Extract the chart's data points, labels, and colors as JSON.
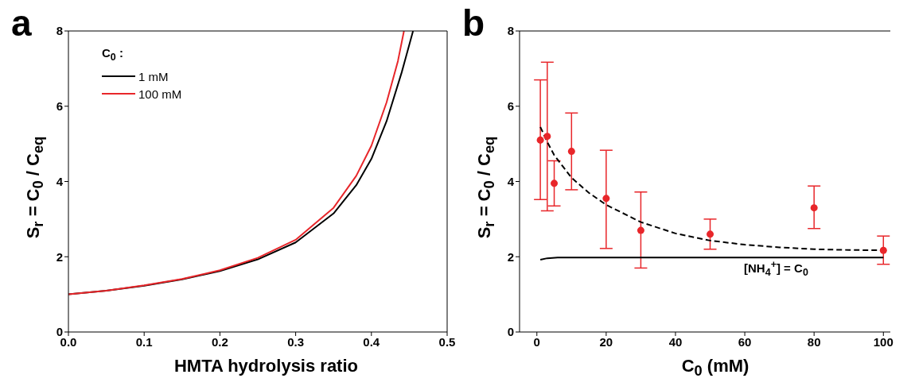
{
  "chart_data": [
    {
      "type": "line",
      "title": "a",
      "xlabel": "HMTA hydrolysis ratio",
      "ylabel": "S$_{r}$ = C$_{0}$ / C$_{eq}$",
      "legend_title": "C$_{0}$ :",
      "legend": "top left",
      "marker": "none",
      "line_style": "solid",
      "xlim": [
        0,
        0.5
      ],
      "xticks": [
        {
          "value": 0,
          "label": "0.0"
        },
        0.1,
        0.2,
        0.3,
        0.4,
        0.5
      ],
      "ylim": [
        0,
        8
      ],
      "yticks": [
        0,
        2,
        4,
        6,
        8
      ],
      "series": [
        {
          "name": "1 mM",
          "color": "#000000",
          "x": [
            0,
            0.05,
            0.1,
            0.15,
            0.2,
            0.25,
            0.3,
            0.35,
            0.38,
            0.4,
            0.42,
            0.44,
            0.455
          ],
          "values": [
            1.0,
            1.1,
            1.23,
            1.4,
            1.62,
            1.93,
            2.38,
            3.15,
            3.9,
            4.6,
            5.6,
            6.9,
            8.0
          ]
        },
        {
          "name": "100 mM",
          "color": "#e8262a",
          "x": [
            0,
            0.05,
            0.1,
            0.15,
            0.2,
            0.25,
            0.3,
            0.35,
            0.38,
            0.4,
            0.42,
            0.435,
            0.443
          ],
          "values": [
            1.0,
            1.1,
            1.24,
            1.41,
            1.64,
            1.97,
            2.45,
            3.3,
            4.15,
            4.95,
            6.1,
            7.2,
            8.0
          ]
        }
      ]
    },
    {
      "type": "scatter",
      "title": "b",
      "xlabel": "C$_{0}$ (mM)",
      "ylabel": "S$_{r}$ = C$_{0}$ / C$_{eq}$",
      "legend": false,
      "xlim": [
        -5,
        102
      ],
      "xticks": [
        0,
        20,
        40,
        60,
        80,
        100
      ],
      "ylim": [
        0,
        8
      ],
      "yticks": [
        0,
        2,
        4,
        6,
        8
      ],
      "annotations": [
        "[NH$_{4}$$^{+}$] = C$_{0}$"
      ],
      "series": [
        {
          "color": "#e8262a",
          "marker": "circle",
          "x": [
            1,
            3,
            5,
            10,
            20,
            30,
            50,
            80,
            100
          ],
          "values": [
            5.1,
            5.2,
            3.95,
            4.8,
            3.55,
            2.7,
            2.6,
            3.3,
            2.17
          ],
          "errors": [
            [
              3.52,
              6.7
            ],
            [
              3.22,
              7.17
            ],
            [
              3.35,
              4.55
            ],
            [
              3.78,
              5.82
            ],
            [
              2.22,
              4.83
            ],
            [
              1.7,
              3.72
            ],
            [
              2.2,
              3.0
            ],
            [
              2.75,
              3.88
            ],
            [
              1.8,
              2.55
            ]
          ]
        },
        {
          "type": "line",
          "color": "#000000",
          "marker": "none",
          "line_style": "dashed",
          "x": [
            1,
            3,
            5,
            10,
            15,
            20,
            30,
            40,
            50,
            60,
            70,
            80,
            90,
            100
          ],
          "values": [
            5.45,
            5.05,
            4.7,
            4.1,
            3.7,
            3.38,
            2.92,
            2.62,
            2.43,
            2.32,
            2.25,
            2.2,
            2.18,
            2.17
          ]
        },
        {
          "type": "line",
          "color": "#000000",
          "marker": "none",
          "line_style": "solid",
          "x": [
            1,
            3,
            6,
            100
          ],
          "values": [
            1.92,
            1.96,
            1.98,
            1.98
          ]
        }
      ]
    }
  ]
}
